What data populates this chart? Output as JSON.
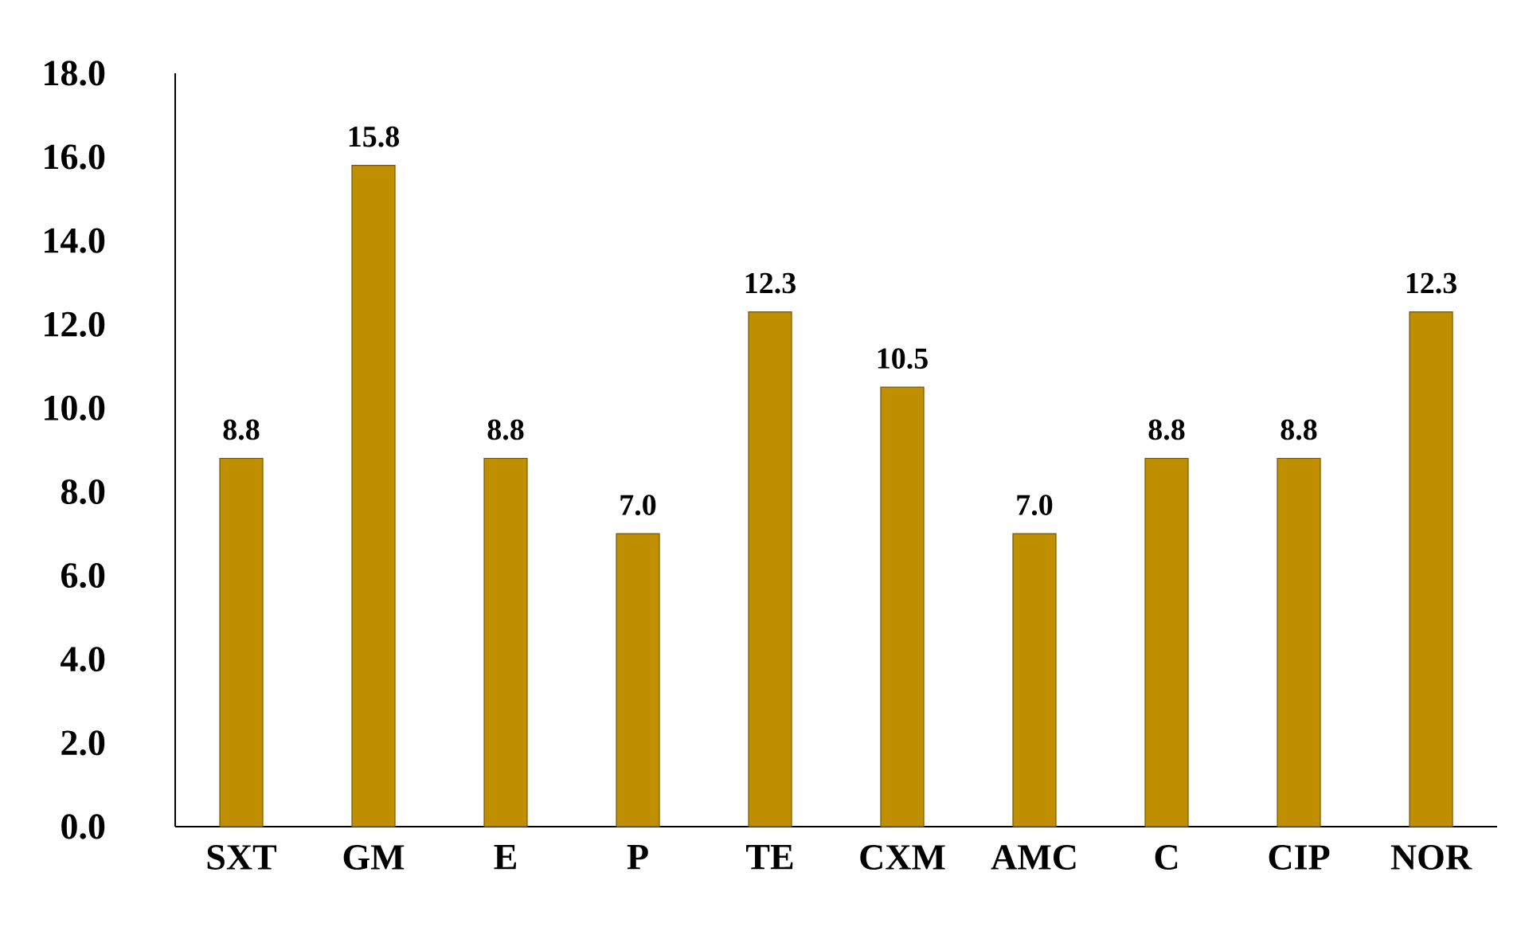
{
  "chart_data": {
    "type": "bar",
    "categories": [
      "SXT",
      "GM",
      "E",
      "P",
      "TE",
      "CXM",
      "AMC",
      "C",
      "CIP",
      "NOR"
    ],
    "values": [
      8.8,
      15.8,
      8.8,
      7.0,
      12.3,
      10.5,
      7.0,
      8.8,
      8.8,
      12.3
    ],
    "value_labels": [
      "8.8",
      "15.8",
      "8.8",
      "7.0",
      "12.3",
      "10.5",
      "7.0",
      "8.8",
      "8.8",
      "12.3"
    ],
    "color": "#bf8f00",
    "ylim": [
      0,
      18
    ],
    "yticks": [
      {
        "value": 0,
        "label": "0.0"
      },
      {
        "value": 2,
        "label": "2.0"
      },
      {
        "value": 4,
        "label": "4.0"
      },
      {
        "value": 6,
        "label": "6.0"
      },
      {
        "value": 8,
        "label": "8.0"
      },
      {
        "value": 10,
        "label": "10.0"
      },
      {
        "value": 12,
        "label": "12.0"
      },
      {
        "value": 14,
        "label": "14.0"
      },
      {
        "value": 16,
        "label": "16.0"
      },
      {
        "value": 18,
        "label": "18.0"
      }
    ],
    "grid": false
  }
}
